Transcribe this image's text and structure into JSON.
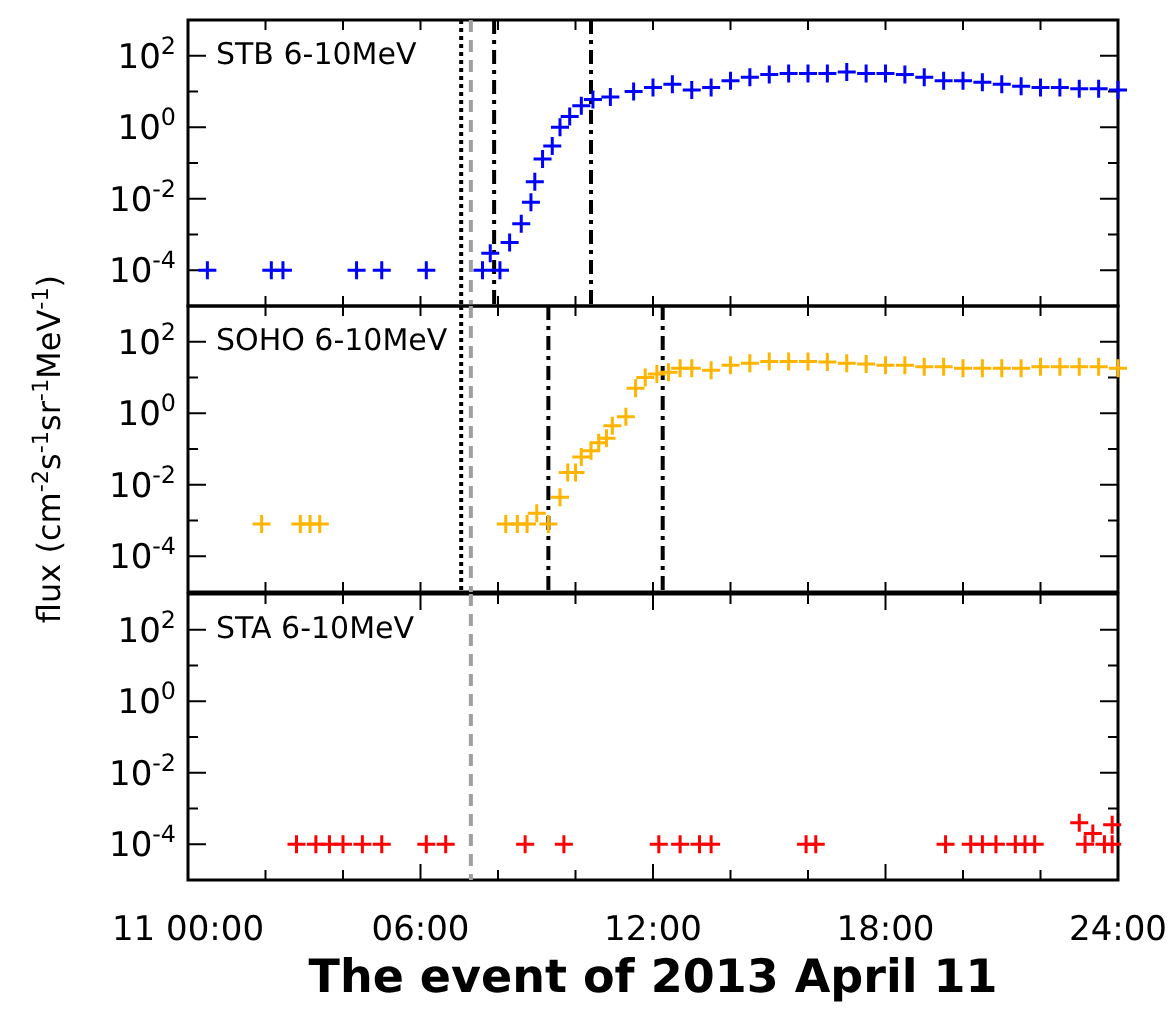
{
  "chart_data": [
    {
      "type": "scatter",
      "marker": "cross",
      "log": true,
      "tick_labels": "y",
      "xlim": [
        0,
        24
      ],
      "ylim": [
        1e-05,
        1000
      ],
      "xticks": [
        {
          "value": 0,
          "label": null
        },
        {
          "value": 2,
          "label": null
        },
        {
          "value": 4,
          "label": null
        },
        {
          "value": 6,
          "label": null
        },
        {
          "value": 8,
          "label": null
        },
        {
          "value": 10,
          "label": null
        },
        {
          "value": 12,
          "label": null
        },
        {
          "value": 14,
          "label": null
        },
        {
          "value": 16,
          "label": null
        },
        {
          "value": 18,
          "label": null
        },
        {
          "value": 20,
          "label": null
        },
        {
          "value": 22,
          "label": null
        },
        {
          "value": 24,
          "label": null
        }
      ],
      "yticks": [
        {
          "value": 0.0001,
          "label": "10$^{-4}$"
        },
        {
          "value": 0.001,
          "label": null
        },
        {
          "value": 0.01,
          "label": "10$^{-2}$"
        },
        {
          "value": 0.1,
          "label": null
        },
        {
          "value": 1,
          "label": "10$^{0}$"
        },
        {
          "value": 10,
          "label": null
        },
        {
          "value": 100,
          "label": "10$^{2}$"
        }
      ],
      "ref_lines": [
        {
          "axis": "x",
          "value": 7.05,
          "color": "#000000",
          "line_style": "dotted"
        },
        {
          "axis": "x",
          "value": 7.3,
          "color": "#a0a0a0",
          "line_style": "dashed"
        },
        {
          "axis": "x",
          "value": 7.9,
          "color": "#000000",
          "line_style": "dashdot"
        },
        {
          "axis": "x",
          "value": 10.4,
          "color": "#000000",
          "line_style": "dashdot"
        }
      ],
      "series": [
        {
          "name": "STB 6-10MeV",
          "color": "#0000ff",
          "x": [
            0.5,
            2.15,
            2.45,
            4.35,
            5.0,
            6.15,
            7.6,
            7.8,
            8.05,
            8.3,
            8.6,
            8.85,
            8.95,
            9.15,
            9.4,
            9.6,
            9.85,
            10.15,
            10.45,
            10.9,
            11.5,
            12.0,
            12.5,
            13.0,
            13.5,
            14.0,
            14.5,
            15.0,
            15.5,
            16.0,
            16.5,
            17.0,
            17.5,
            18.0,
            18.5,
            19.0,
            19.5,
            20.0,
            20.5,
            21.0,
            21.5,
            22.0,
            22.5,
            23.0,
            23.5,
            24.0
          ],
          "values": [
            0.0001,
            0.0001,
            0.0001,
            0.0001,
            0.0001,
            0.0001,
            0.0001,
            0.0003,
            0.0001,
            0.0006,
            0.002,
            0.008,
            0.03,
            0.13,
            0.3,
            1,
            2,
            4,
            6,
            7,
            10,
            13,
            16,
            11,
            13,
            20,
            25,
            30,
            32,
            32,
            32,
            35,
            32,
            32,
            30,
            25,
            20,
            20,
            18,
            16,
            14,
            13,
            13,
            12,
            12,
            11
          ]
        }
      ]
    },
    {
      "type": "scatter",
      "marker": "cross",
      "log": true,
      "tick_labels": "y",
      "xlim": [
        0,
        24
      ],
      "ylim": [
        1e-05,
        1000
      ],
      "ylabel": "flux (cm$^{-2}$s$^{-1}$sr$^{-1}$MeV$^{-1}$)",
      "xticks": [
        {
          "value": 0,
          "label": null
        },
        {
          "value": 2,
          "label": null
        },
        {
          "value": 4,
          "label": null
        },
        {
          "value": 6,
          "label": null
        },
        {
          "value": 8,
          "label": null
        },
        {
          "value": 10,
          "label": null
        },
        {
          "value": 12,
          "label": null
        },
        {
          "value": 14,
          "label": null
        },
        {
          "value": 16,
          "label": null
        },
        {
          "value": 18,
          "label": null
        },
        {
          "value": 20,
          "label": null
        },
        {
          "value": 22,
          "label": null
        },
        {
          "value": 24,
          "label": null
        }
      ],
      "yticks": [
        {
          "value": 0.0001,
          "label": "10$^{-4}$"
        },
        {
          "value": 0.001,
          "label": null
        },
        {
          "value": 0.01,
          "label": "10$^{-2}$"
        },
        {
          "value": 0.1,
          "label": null
        },
        {
          "value": 1,
          "label": "10$^{0}$"
        },
        {
          "value": 10,
          "label": null
        },
        {
          "value": 100,
          "label": "10$^{2}$"
        }
      ],
      "ref_lines": [
        {
          "axis": "x",
          "value": 7.05,
          "color": "#000000",
          "line_style": "dotted"
        },
        {
          "axis": "x",
          "value": 7.3,
          "color": "#a0a0a0",
          "line_style": "dashed"
        },
        {
          "axis": "x",
          "value": 9.3,
          "color": "#000000",
          "line_style": "dashdot"
        },
        {
          "axis": "x",
          "value": 12.25,
          "color": "#000000",
          "line_style": "dashdot"
        }
      ],
      "series": [
        {
          "name": "SOHO 6-10MeV",
          "color": "#ffb400",
          "x": [
            1.9,
            2.9,
            3.15,
            3.4,
            8.2,
            8.5,
            8.75,
            9.0,
            9.3,
            9.6,
            9.8,
            10.0,
            10.15,
            10.4,
            10.6,
            10.8,
            10.95,
            11.3,
            11.55,
            11.8,
            12.1,
            12.4,
            12.7,
            13.0,
            13.5,
            14.0,
            14.5,
            15.0,
            15.5,
            16.0,
            16.5,
            17.0,
            17.5,
            18.0,
            18.5,
            19.0,
            19.5,
            20.0,
            20.5,
            21.0,
            21.5,
            22.0,
            22.5,
            23.0,
            23.5,
            24.0
          ],
          "values": [
            0.0008,
            0.0008,
            0.0008,
            0.0008,
            0.0008,
            0.0008,
            0.0008,
            0.0016,
            0.0008,
            0.0045,
            0.022,
            0.022,
            0.06,
            0.09,
            0.15,
            0.2,
            0.45,
            0.8,
            5,
            10,
            12.5,
            14,
            18,
            18,
            16,
            22,
            25,
            28,
            28,
            28,
            27,
            25,
            24,
            22,
            22,
            20,
            20,
            18,
            18,
            18,
            18,
            20,
            20,
            20,
            20,
            18
          ]
        }
      ]
    },
    {
      "type": "scatter",
      "marker": "cross",
      "log": true,
      "xlim": [
        0,
        24
      ],
      "ylim": [
        1e-05,
        1000
      ],
      "xlabel": "The event of 2013 April 11",
      "xticks": [
        {
          "value": 0,
          "label": "11  00:00"
        },
        {
          "value": 2,
          "label": null
        },
        {
          "value": 4,
          "label": null
        },
        {
          "value": 6,
          "label": "06:00"
        },
        {
          "value": 8,
          "label": null
        },
        {
          "value": 10,
          "label": null
        },
        {
          "value": 12,
          "label": "12:00"
        },
        {
          "value": 14,
          "label": null
        },
        {
          "value": 16,
          "label": null
        },
        {
          "value": 18,
          "label": "18:00"
        },
        {
          "value": 20,
          "label": null
        },
        {
          "value": 22,
          "label": null
        },
        {
          "value": 24,
          "label": "24:00"
        }
      ],
      "yticks": [
        {
          "value": 0.0001,
          "label": "10$^{-4}$"
        },
        {
          "value": 0.001,
          "label": null
        },
        {
          "value": 0.01,
          "label": "10$^{-2}$"
        },
        {
          "value": 0.1,
          "label": null
        },
        {
          "value": 1,
          "label": "10$^{0}$"
        },
        {
          "value": 10,
          "label": null
        },
        {
          "value": 100,
          "label": "10$^{2}$"
        }
      ],
      "ref_lines": [
        {
          "axis": "x",
          "value": 7.3,
          "color": "#a0a0a0",
          "line_style": "dashed"
        }
      ],
      "series": [
        {
          "name": "STA 6-10MeV",
          "color": "#ff0000",
          "x": [
            2.8,
            3.3,
            3.65,
            4.0,
            4.5,
            5.0,
            6.15,
            6.65,
            8.7,
            9.7,
            12.15,
            12.7,
            13.2,
            13.5,
            15.95,
            16.2,
            19.55,
            20.2,
            20.5,
            20.85,
            21.35,
            21.6,
            21.85,
            23.0,
            23.15,
            23.35,
            23.65,
            23.85,
            23.85
          ],
          "values": [
            0.0001,
            0.0001,
            0.0001,
            0.0001,
            0.0001,
            0.0001,
            0.0001,
            0.0001,
            0.0001,
            0.0001,
            0.0001,
            0.0001,
            0.0001,
            0.0001,
            0.0001,
            0.0001,
            0.0001,
            0.0001,
            0.0001,
            0.0001,
            0.0001,
            0.0001,
            0.0001,
            0.0004,
            0.0001,
            0.0002,
            0.0001,
            0.00035,
            0.0001
          ]
        }
      ]
    }
  ]
}
